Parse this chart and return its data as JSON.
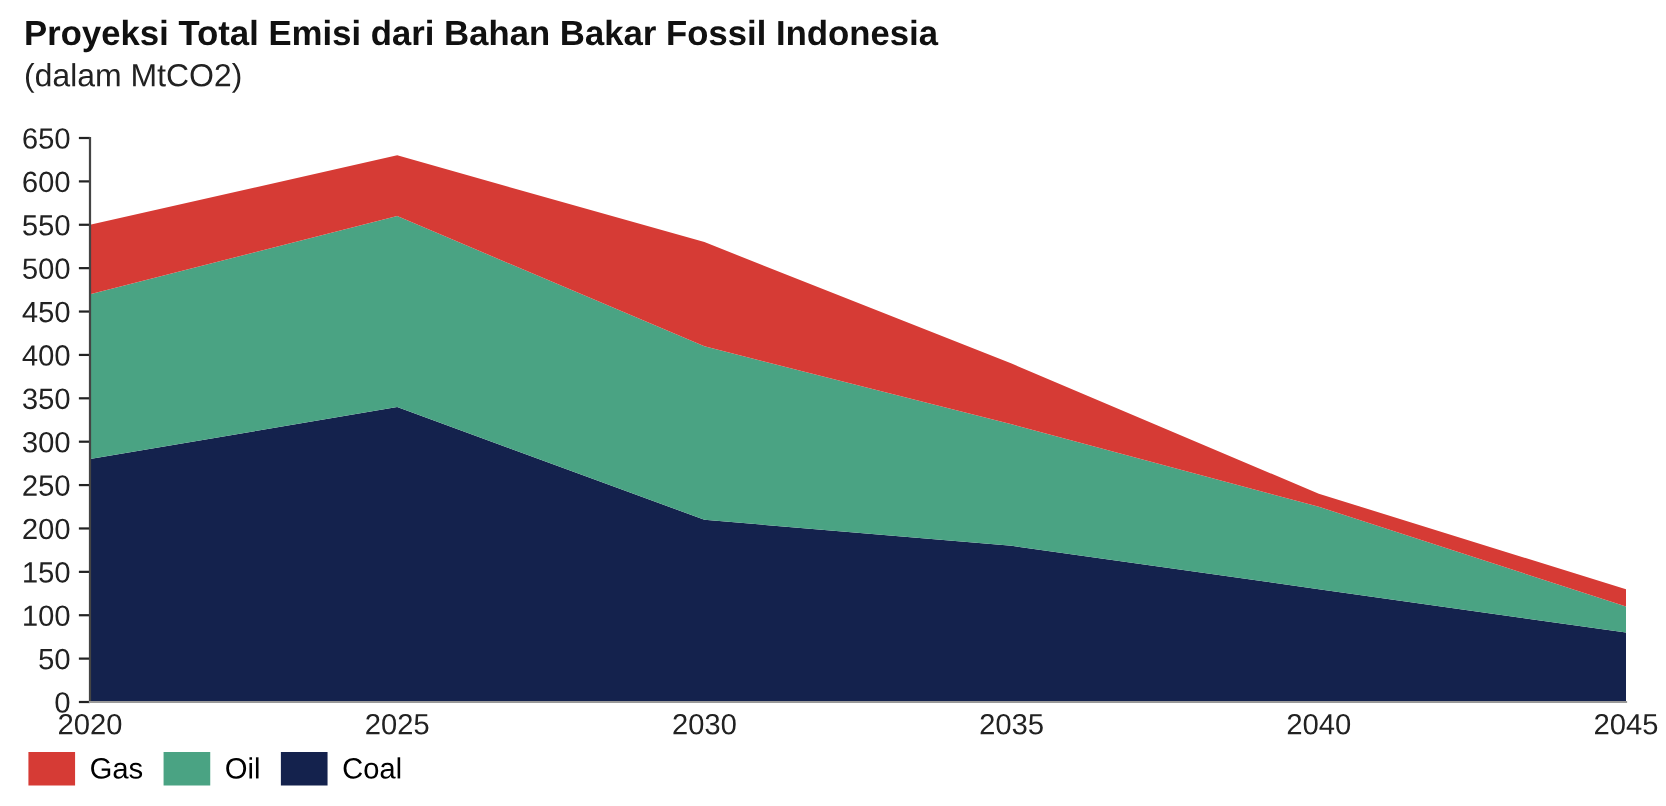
{
  "chart_data": {
    "type": "area",
    "title": "Proyeksi Total Emisi dari Bahan Bakar Fossil Indonesia",
    "subtitle": "(dalam MtCO2)",
    "x": [
      2020,
      2025,
      2030,
      2035,
      2040,
      2045
    ],
    "stacked": true,
    "series": [
      {
        "name": "Coal",
        "color": "#14224d",
        "values": [
          280,
          340,
          210,
          180,
          130,
          80
        ]
      },
      {
        "name": "Oil",
        "color": "#4aa383",
        "values": [
          190,
          220,
          200,
          140,
          95,
          30
        ]
      },
      {
        "name": "Gas",
        "color": "#d63b35",
        "values": [
          80,
          70,
          120,
          70,
          15,
          20
        ]
      }
    ],
    "xlim": [
      2020,
      2045
    ],
    "xticks": [
      2020,
      2025,
      2030,
      2035,
      2040,
      2045
    ],
    "ylim": [
      0,
      650
    ],
    "yticks": [
      0,
      50,
      100,
      150,
      200,
      250,
      300,
      350,
      400,
      450,
      500,
      550,
      600,
      650
    ],
    "grid": false,
    "legend": "bottom left"
  }
}
